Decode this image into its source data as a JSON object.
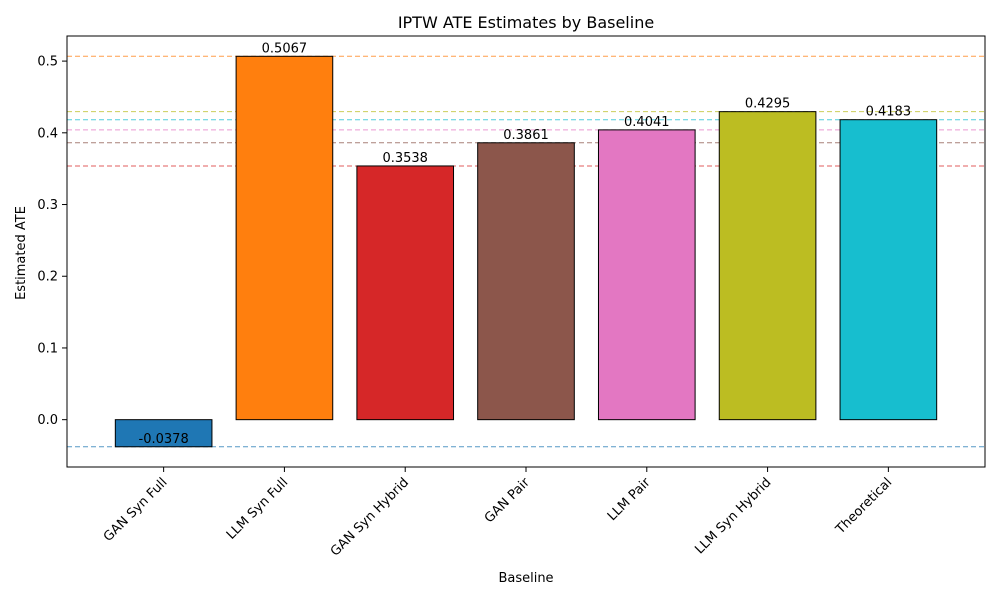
{
  "chart_data": {
    "type": "bar",
    "title": "IPTW ATE Estimates by Baseline",
    "xlabel": "Baseline",
    "ylabel": "Estimated ATE",
    "categories": [
      "GAN Syn Full",
      "LLM Syn Full",
      "GAN Syn Hybrid",
      "GAN Pair",
      "LLM Pair",
      "LLM Syn Hybrid",
      "Theoretical"
    ],
    "values": [
      -0.0378,
      0.5067,
      0.3538,
      0.3861,
      0.4041,
      0.4295,
      0.4183
    ],
    "value_labels": [
      "-0.0378",
      "0.5067",
      "0.3538",
      "0.3861",
      "0.4041",
      "0.4295",
      "0.4183"
    ],
    "colors": [
      "#1f77b4",
      "#ff7f0e",
      "#d62728",
      "#8c564b",
      "#e377c2",
      "#bcbd22",
      "#17becf"
    ],
    "ylim": [
      -0.066,
      0.535
    ],
    "yticks": [
      0.0,
      0.1,
      0.2,
      0.3,
      0.4,
      0.5
    ],
    "ytick_labels": [
      "0.0",
      "0.1",
      "0.2",
      "0.3",
      "0.4",
      "0.5"
    ],
    "reference_lines": "dashed horizontal line at each bar value, in the bar's color",
    "grid": false,
    "legend": "none"
  }
}
